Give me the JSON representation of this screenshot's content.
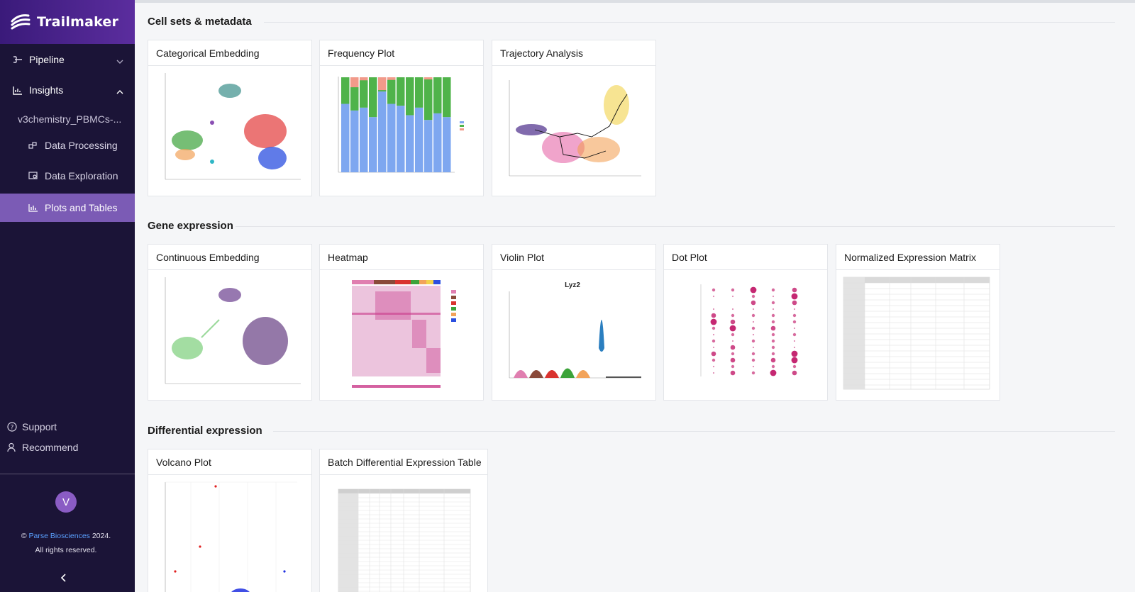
{
  "app": {
    "name": "Trailmaker"
  },
  "sidebar": {
    "pipeline": "Pipeline",
    "insights": "Insights",
    "project": "v3chemistry_PBMCs-...",
    "items": [
      {
        "label": "Data Processing"
      },
      {
        "label": "Data Exploration"
      },
      {
        "label": "Plots and Tables"
      }
    ],
    "support": "Support",
    "recommend": "Recommend",
    "avatar_initial": "V",
    "copyright_prefix": "©",
    "copyright_link": "Parse Biosciences",
    "copyright_year": "2024.",
    "rights": "All rights reserved."
  },
  "sections": [
    {
      "title": "Cell sets & metadata",
      "cards": [
        {
          "title": "Categorical Embedding"
        },
        {
          "title": "Frequency Plot"
        },
        {
          "title": "Trajectory Analysis"
        }
      ]
    },
    {
      "title": "Gene expression",
      "cards": [
        {
          "title": "Continuous Embedding"
        },
        {
          "title": "Heatmap"
        },
        {
          "title": "Violin Plot"
        },
        {
          "title": "Dot Plot"
        },
        {
          "title": "Normalized Expression Matrix"
        }
      ]
    },
    {
      "title": "Differential expression",
      "cards": [
        {
          "title": "Volcano Plot"
        },
        {
          "title": "Batch Differential Expression Table"
        }
      ]
    }
  ],
  "thumbs": {
    "violin_title": "Lyz2"
  },
  "colors": {
    "sidebar_bg": "#1b1437",
    "brand_bg": "#5b2d9e",
    "active_item": "#7b5bb5",
    "link": "#5aa0ff"
  }
}
